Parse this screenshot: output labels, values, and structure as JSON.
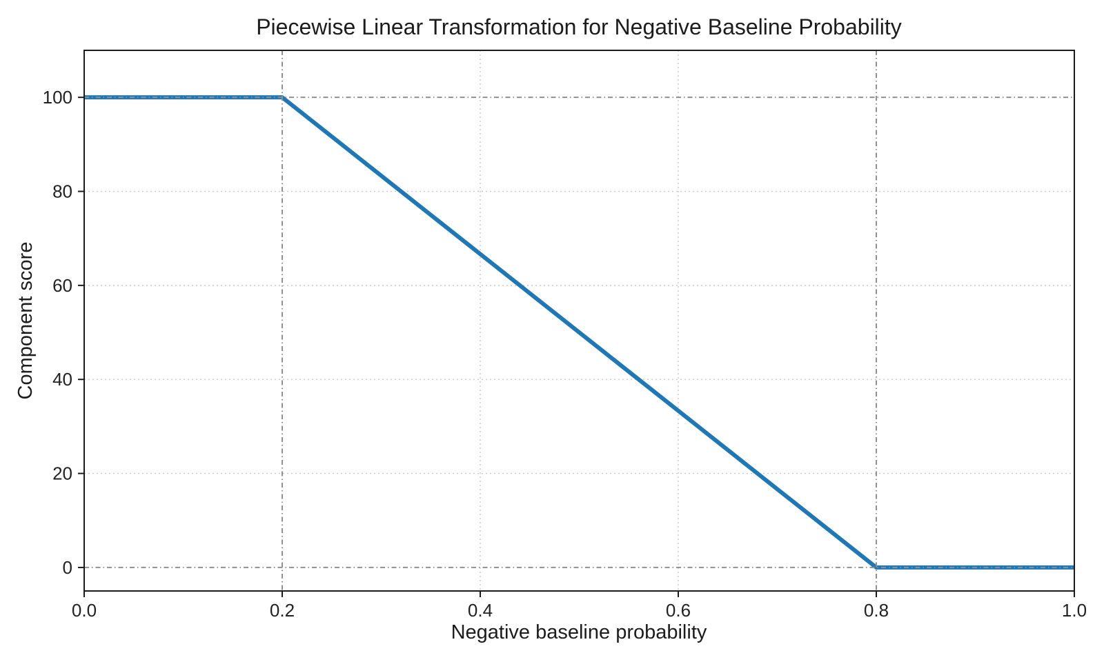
{
  "chart_data": {
    "type": "line",
    "title": "Piecewise Linear Transformation for Negative Baseline Probability",
    "xlabel": "Negative baseline probability",
    "ylabel": "Component score",
    "xlim": [
      0.0,
      1.0
    ],
    "ylim": [
      -5,
      110
    ],
    "x_ticks": [
      0.0,
      0.2,
      0.4,
      0.6,
      0.8,
      1.0
    ],
    "x_tick_labels": [
      "0.0",
      "0.2",
      "0.4",
      "0.6",
      "0.8",
      "1.0"
    ],
    "y_ticks": [
      0,
      20,
      40,
      60,
      80,
      100
    ],
    "y_tick_labels": [
      "0",
      "20",
      "40",
      "60",
      "80",
      "100"
    ],
    "series": [
      {
        "name": "component-score",
        "color": "#1f77b4",
        "linewidth": 6,
        "points": [
          [
            0.0,
            100
          ],
          [
            0.2,
            100
          ],
          [
            0.8,
            0
          ],
          [
            1.0,
            0
          ]
        ]
      }
    ],
    "reference_lines": {
      "vertical_x": [
        0.2,
        0.8
      ],
      "horizontal_y": [
        0,
        100
      ],
      "color": "#8f8f8f",
      "style": "dash-dot"
    },
    "grid": {
      "on": true,
      "color": "#c9c9c9",
      "style": "dotted",
      "legend": "none"
    },
    "colors": {
      "line": "#1f77b4",
      "spine": "#1a1a1a",
      "text": "#1c1c1c"
    }
  }
}
